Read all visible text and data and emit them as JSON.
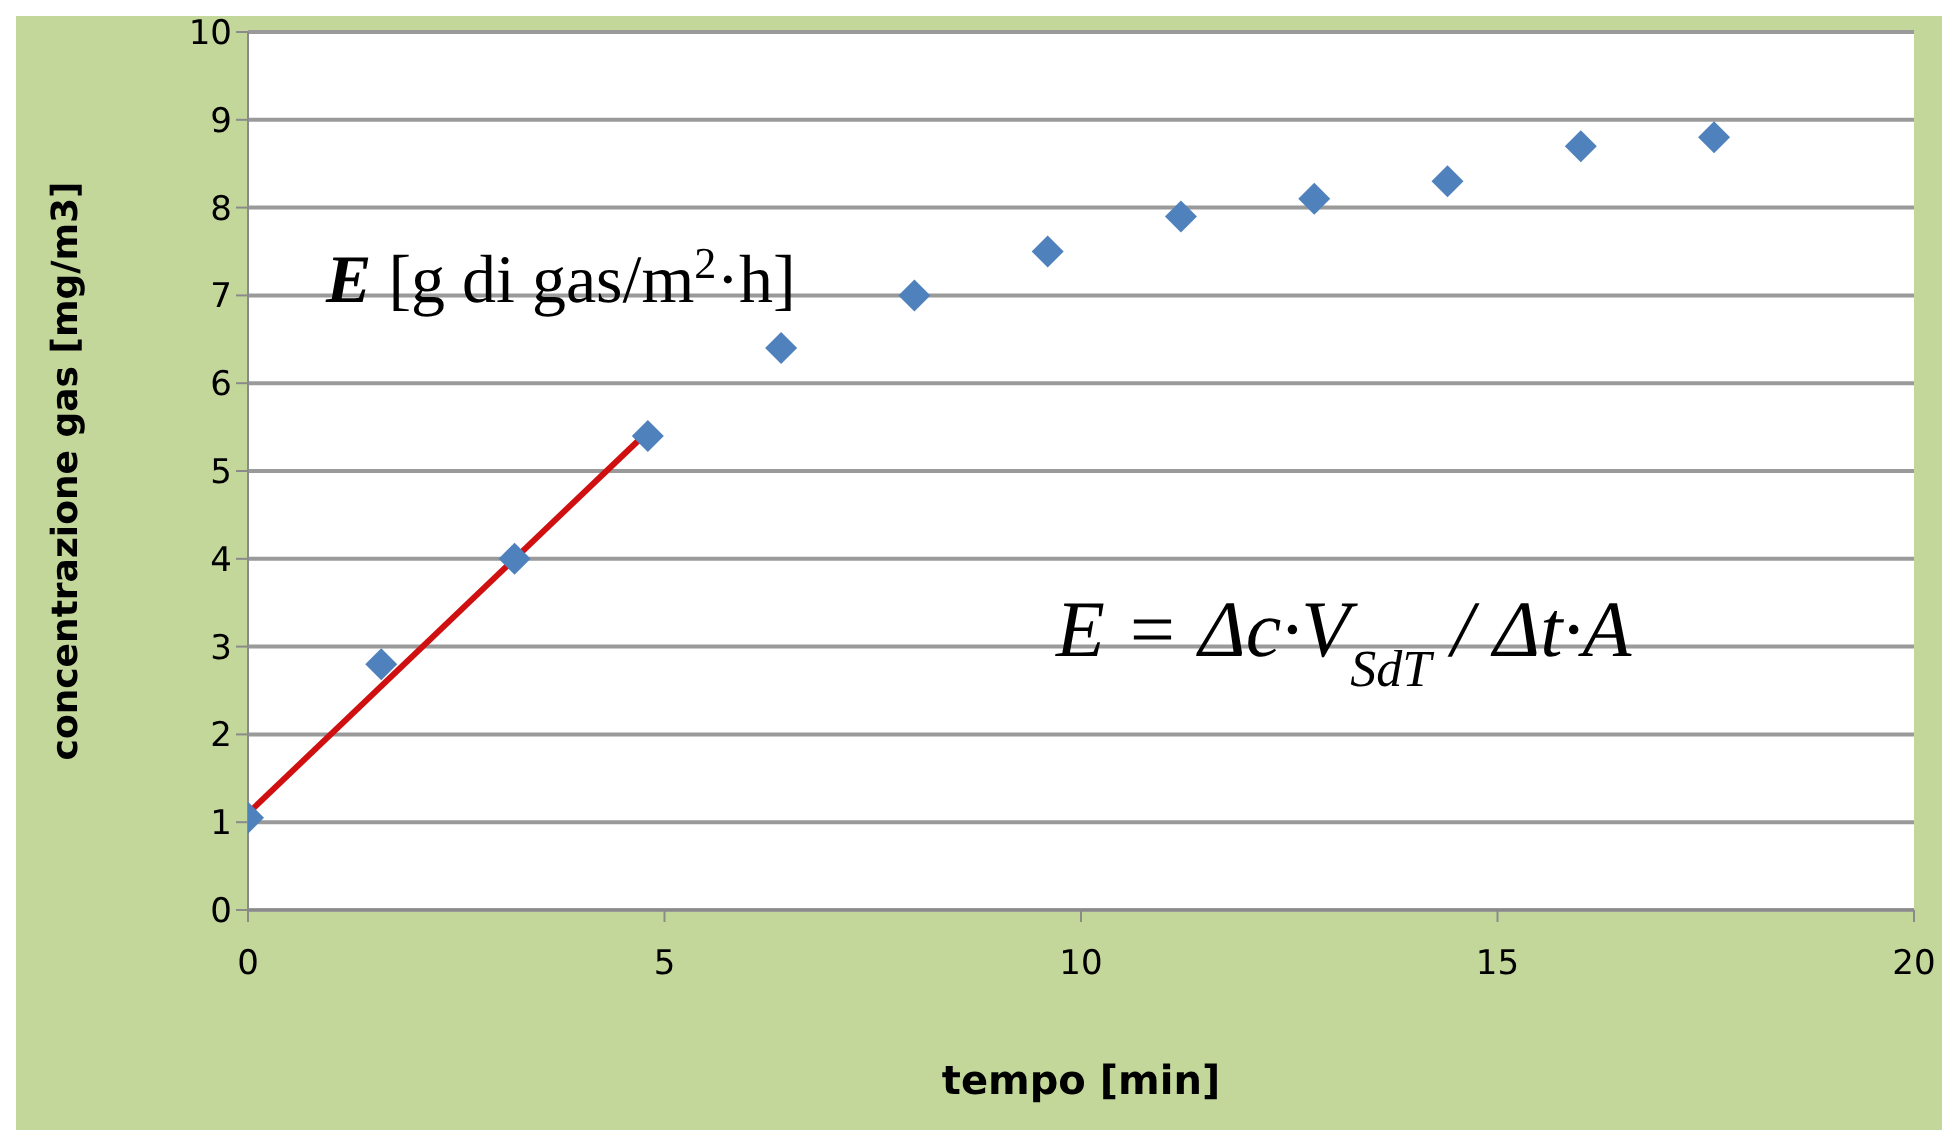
{
  "chart_data": {
    "type": "scatter",
    "xlabel": "tempo [min]",
    "ylabel": "concentrazione gas [mg/m3]",
    "x": [
      0,
      1.6,
      3.2,
      4.8,
      6.4,
      8,
      9.6,
      11.2,
      12.8,
      14.4,
      16,
      17.6
    ],
    "series": [
      {
        "color": "#4f81bd",
        "marker": "diamond",
        "values": [
          1.05,
          2.8,
          4.0,
          5.4,
          6.4,
          7.0,
          7.5,
          7.9,
          8.1,
          8.3,
          8.7,
          8.8
        ]
      },
      {
        "type": "line",
        "color": "#d01010",
        "marker": "none",
        "x": [
          0,
          4.8
        ],
        "values": [
          1.1,
          5.45
        ]
      }
    ],
    "xlim": [
      0,
      20
    ],
    "xticks": [
      0,
      5,
      10,
      15,
      20
    ],
    "ylim": [
      0,
      10
    ],
    "yticks": [
      0,
      1,
      2,
      3,
      4,
      5,
      6,
      7,
      8,
      9,
      10
    ],
    "grid": "y",
    "legend": false,
    "annotations": [
      "E [g di gas/m$^{2}$·h]",
      "E = Δc·V$_{SdT}$ / Δt·A"
    ]
  }
}
